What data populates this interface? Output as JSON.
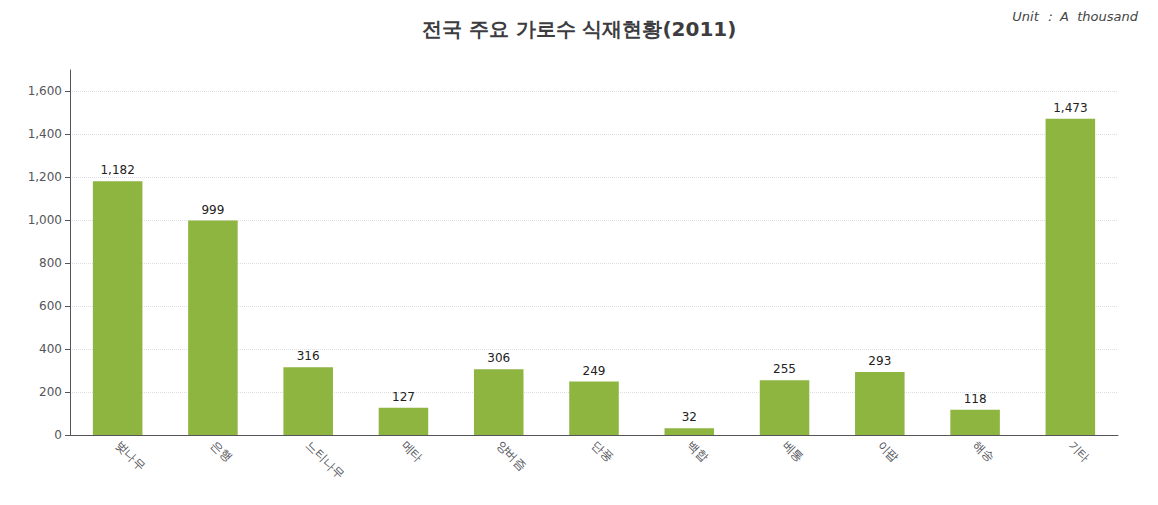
{
  "chart_data": {
    "type": "bar",
    "title": "전국 주요 가로수 식재현황(2011)",
    "annotations": [
      "Unit ： A  thousand"
    ],
    "categories": [
      "벚나무",
      "은행",
      "느티나무",
      "메타",
      "양버즘",
      "단풍",
      "백합",
      "베통",
      "이팝",
      "해송",
      "기타"
    ],
    "values": [
      1182,
      999,
      316,
      127,
      306,
      249,
      32,
      255,
      293,
      118,
      1473
    ],
    "value_labels": [
      "1,182",
      "999",
      "316",
      "127",
      "306",
      "249",
      "32",
      "255",
      "293",
      "118",
      "1,473"
    ],
    "data_labels": true,
    "color": "#8db540",
    "ylim": [
      0,
      1700
    ],
    "yticks": [
      0,
      200,
      400,
      600,
      800,
      {
        "value": 1000,
        "label": "1,000"
      },
      {
        "value": 1200,
        "label": "1,200"
      },
      {
        "value": 1400,
        "label": "1,400"
      },
      {
        "value": 1600,
        "label": "1,600"
      }
    ],
    "grid": true
  }
}
